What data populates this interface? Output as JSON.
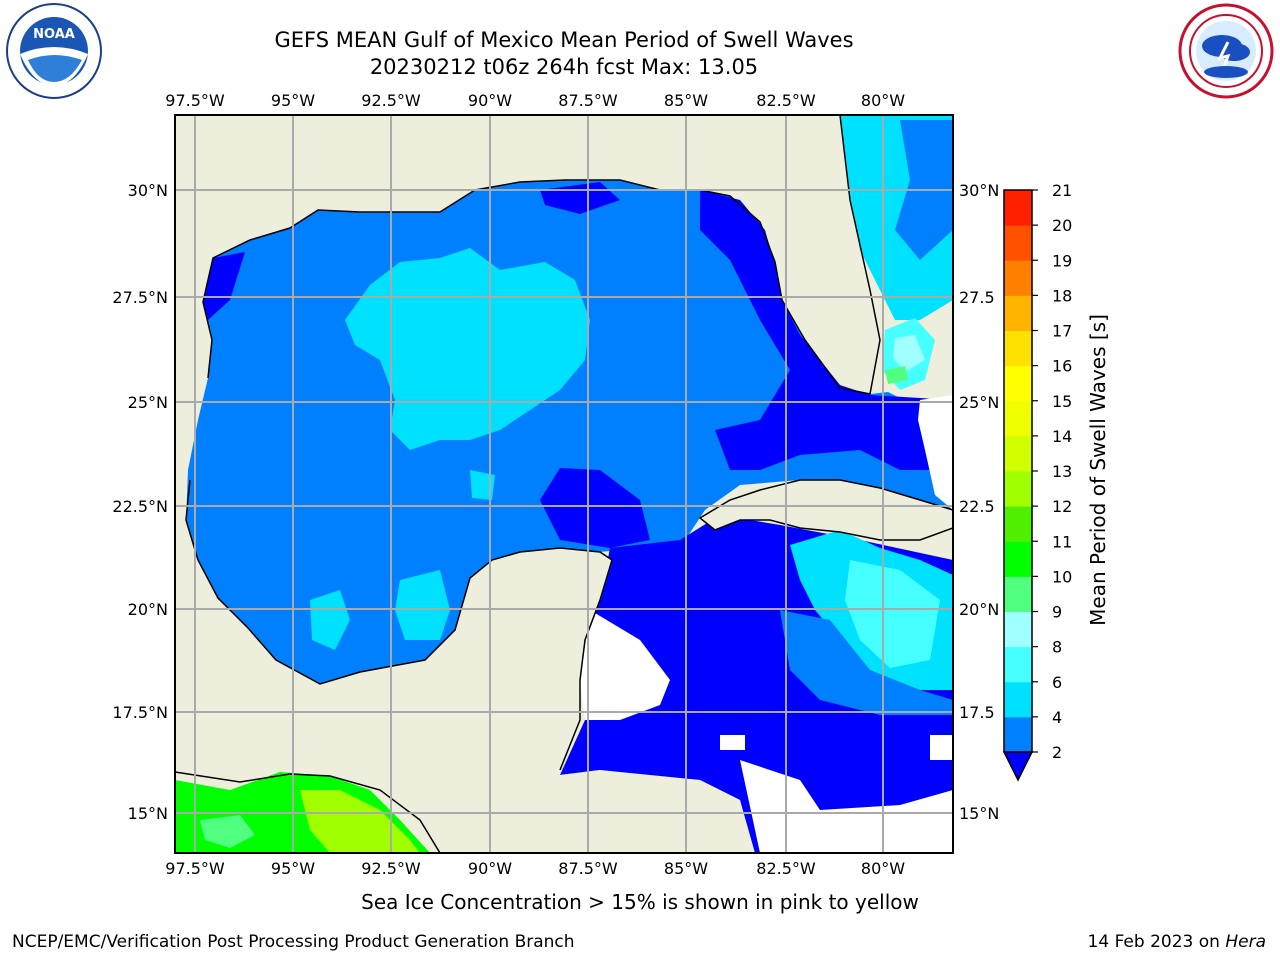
{
  "header": {
    "title": "GEFS MEAN Gulf of Mexico Mean Period of Swell Waves",
    "subtitle": "20230212 t06z 264h fcst   Max: 13.05"
  },
  "logos": {
    "left": "NOAA",
    "left_ring": "NATIONAL OCEANIC AND ATMOSPHERIC ADMINISTRATION · U.S. DEPARTMENT OF COMMERCE",
    "right_ring": "NATIONAL WEATHER SERVICE"
  },
  "map": {
    "lon_labels": [
      "97.5°W",
      "95°W",
      "92.5°W",
      "90°W",
      "87.5°W",
      "85°W",
      "82.5°W",
      "80°W"
    ],
    "lat_labels_left": [
      "30°N",
      "27.5°N",
      "25°N",
      "22.5°N",
      "20°N",
      "17.5°N",
      "15°N"
    ],
    "lat_labels_right": [
      "30°N",
      "27.5",
      "25°N",
      "22.5",
      "20°N",
      "17.5",
      "15°N"
    ],
    "colors": {
      "land": "#eeeedd",
      "no_data": "#ffffff",
      "grid": "#aaaaaa",
      "coast": "#000000"
    }
  },
  "colorbar": {
    "label": "Mean Period of Swell Waves [s]",
    "ticks": [
      "2",
      "4",
      "6",
      "8",
      "9",
      "10",
      "11",
      "12",
      "13",
      "14",
      "15",
      "16",
      "17",
      "18",
      "19",
      "20",
      "21"
    ],
    "colors": [
      "#0000ff",
      "#0080ff",
      "#00e1ff",
      "#46ffff",
      "#a0ffff",
      "#50ff80",
      "#00ff00",
      "#50ef00",
      "#a0ff00",
      "#d0ff00",
      "#f0ff00",
      "#ffff00",
      "#ffe100",
      "#ffb400",
      "#ff8000",
      "#ff5000",
      "#ff2000",
      "#ff0000"
    ],
    "extend_color": "#0000ff"
  },
  "note": "Sea Ice Concentration > 15% is shown in pink to yellow",
  "footer": {
    "left": "NCEP/EMC/Verification Post Processing Product Generation Branch",
    "right_date": "14 Feb 2023 on",
    "right_host": "Hera"
  }
}
